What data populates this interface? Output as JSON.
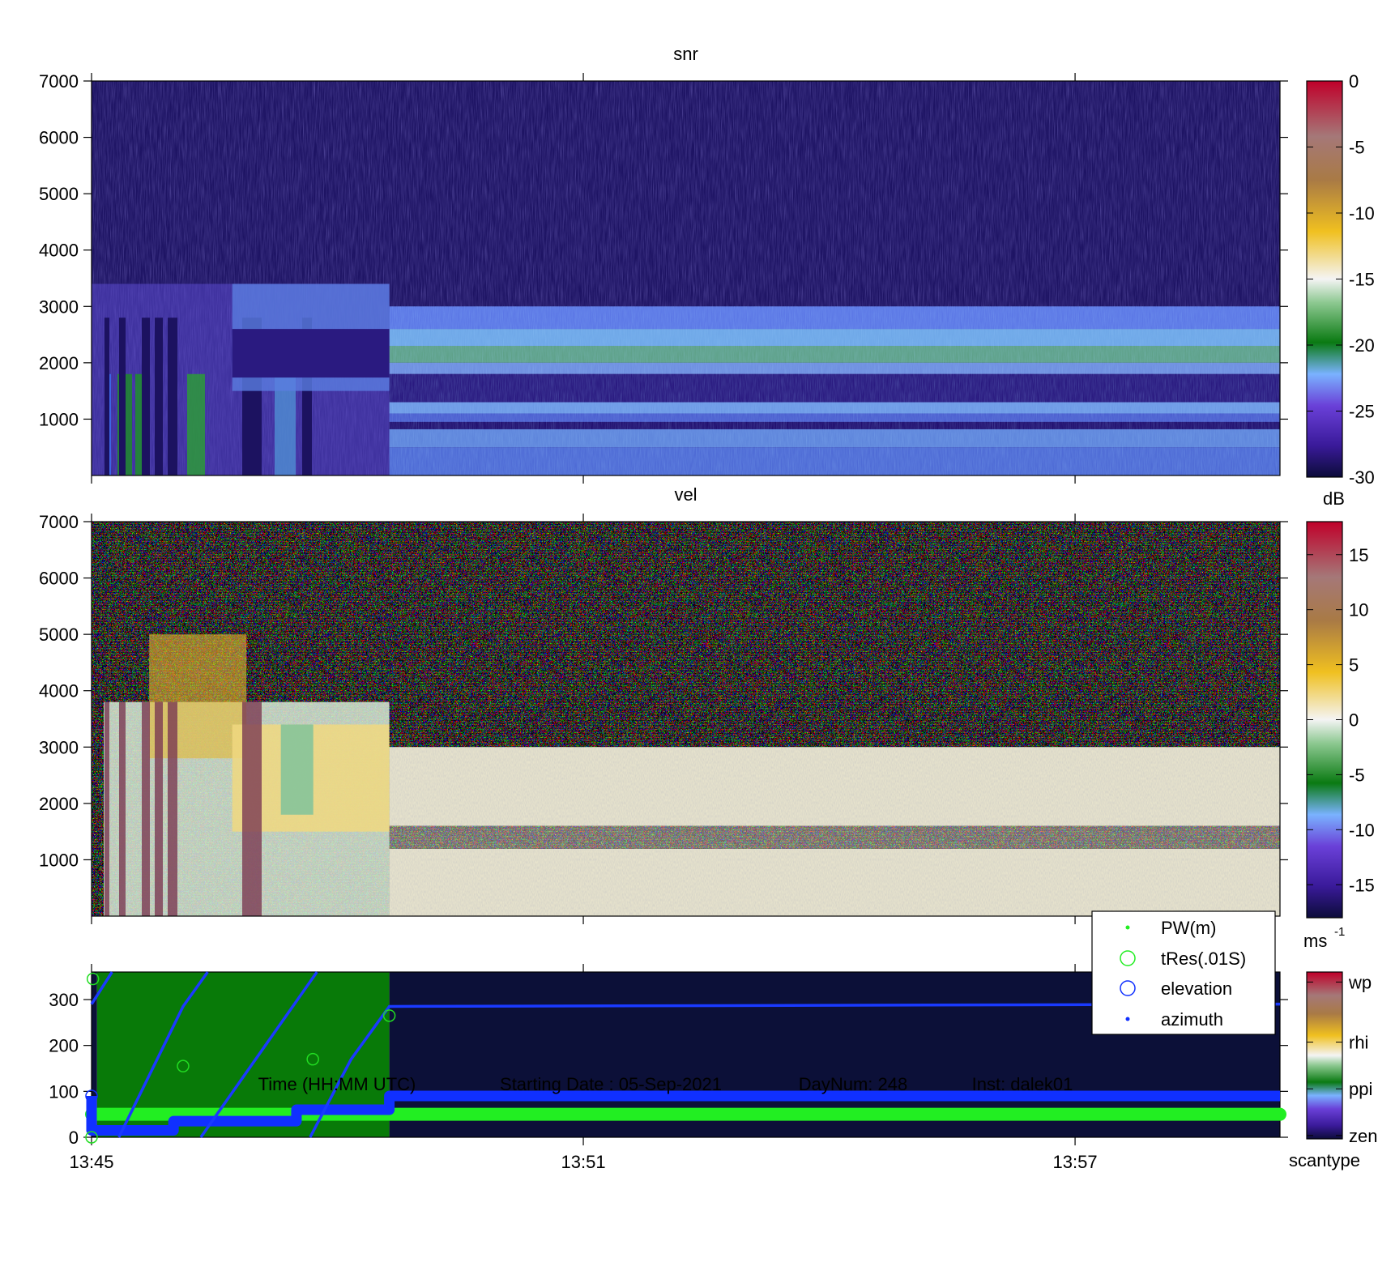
{
  "chart_data": [
    {
      "type": "heatmap",
      "title": "snr",
      "time_range": [
        "13:45",
        "13:59:30"
      ],
      "ylim": [
        0,
        7000
      ],
      "yticks": [
        1000,
        2000,
        3000,
        4000,
        5000,
        6000,
        7000
      ],
      "colorbar": {
        "min": -30,
        "max": 0,
        "ticks": [
          0,
          -5,
          -10,
          -15,
          -20,
          -25,
          -30
        ],
        "unit": "dB"
      },
      "regions": [
        {
          "t_start": "13:45:00",
          "t_end": "13:48:38",
          "range_top": 3400,
          "typical_value": -22
        },
        {
          "t_start": "13:48:38",
          "t_end": "13:59:30",
          "range_top": 3000,
          "typical_value": -23
        },
        {
          "t_start": "13:48:38",
          "t_end": "13:59:30",
          "range_bottom": 3000,
          "range_top": 7000,
          "typical_value": -29
        }
      ]
    },
    {
      "type": "heatmap",
      "title": "vel",
      "time_range": [
        "13:45",
        "13:59:30"
      ],
      "ylim": [
        0,
        7000
      ],
      "yticks": [
        1000,
        2000,
        3000,
        4000,
        5000,
        6000,
        7000
      ],
      "colorbar": {
        "min": -18,
        "max": 18,
        "ticks": [
          15,
          10,
          5,
          0,
          -5,
          -10,
          -15
        ],
        "unit": "ms",
        "unit_superscript": "-1"
      },
      "regions": [
        {
          "t_start": "13:48:38",
          "t_end": "13:59:30",
          "range_top": 3000,
          "typical_value": 0
        },
        {
          "t_start": "13:48:38",
          "t_end": "13:59:30",
          "range_bottom": 3000,
          "range_top": 7000,
          "typical_value": "noise"
        }
      ]
    },
    {
      "type": "scatter",
      "xlabel": "Time (HH:MM UTC)",
      "xticks": [
        "13:45",
        "13:51",
        "13:57"
      ],
      "ylim": [
        0,
        360
      ],
      "yticks": [
        0,
        100,
        200,
        300
      ],
      "colorbar": {
        "ticks": [
          "wp",
          "rhi",
          "ppi",
          "zen"
        ],
        "label": "scantype"
      },
      "scantype_background": [
        {
          "t_start": "13:45:04",
          "t_end": "13:48:38",
          "scantype": "ppi"
        },
        {
          "t_start": "13:48:38",
          "t_end": "13:59:30",
          "scantype": "zen"
        }
      ],
      "legend": [
        "PW(m)",
        "tRes(.01S)",
        "elevation",
        "azimuth"
      ],
      "legend_placement": "top-right",
      "series": [
        {
          "name": "PW(m)",
          "time_range": [
            "13:45",
            "13:59:30"
          ],
          "value": 50
        },
        {
          "name": "tRes(.01S)",
          "points": [
            [
              "13:45:01",
              345
            ],
            [
              "13:46:07",
              155
            ],
            [
              "13:47:42",
              170
            ],
            [
              "13:48:38",
              265
            ]
          ]
        },
        {
          "name": "elevation",
          "points": [
            [
              "13:45:00",
              90
            ],
            [
              "13:45:00",
              15
            ],
            [
              "13:46:00",
              15
            ],
            [
              "13:46:00",
              35
            ],
            [
              "13:47:30",
              35
            ],
            [
              "13:47:30",
              60
            ],
            [
              "13:48:38",
              60
            ],
            [
              "13:48:38",
              90
            ],
            [
              "13:59:30",
              90
            ]
          ]
        },
        {
          "name": "azimuth",
          "segments": [
            [
              [
                "13:45:00",
                290
              ],
              [
                "13:45:15",
                360
              ]
            ],
            [
              [
                "13:45:20",
                0
              ],
              [
                "13:46:07",
                285
              ],
              [
                "13:46:25",
                360
              ]
            ],
            [
              [
                "13:46:20",
                0
              ],
              [
                "13:47:45",
                360
              ]
            ],
            [
              [
                "13:47:40",
                0
              ],
              [
                "13:48:10",
                170
              ],
              [
                "13:48:38",
                285
              ],
              [
                "13:59:30",
                290
              ]
            ]
          ]
        }
      ]
    }
  ],
  "footer": {
    "time_label": "Time (HH:MM UTC)",
    "start_date": "Starting Date : 05-Sep-2021",
    "daynum": "DayNum: 248",
    "inst": "Inst: dalek01"
  }
}
